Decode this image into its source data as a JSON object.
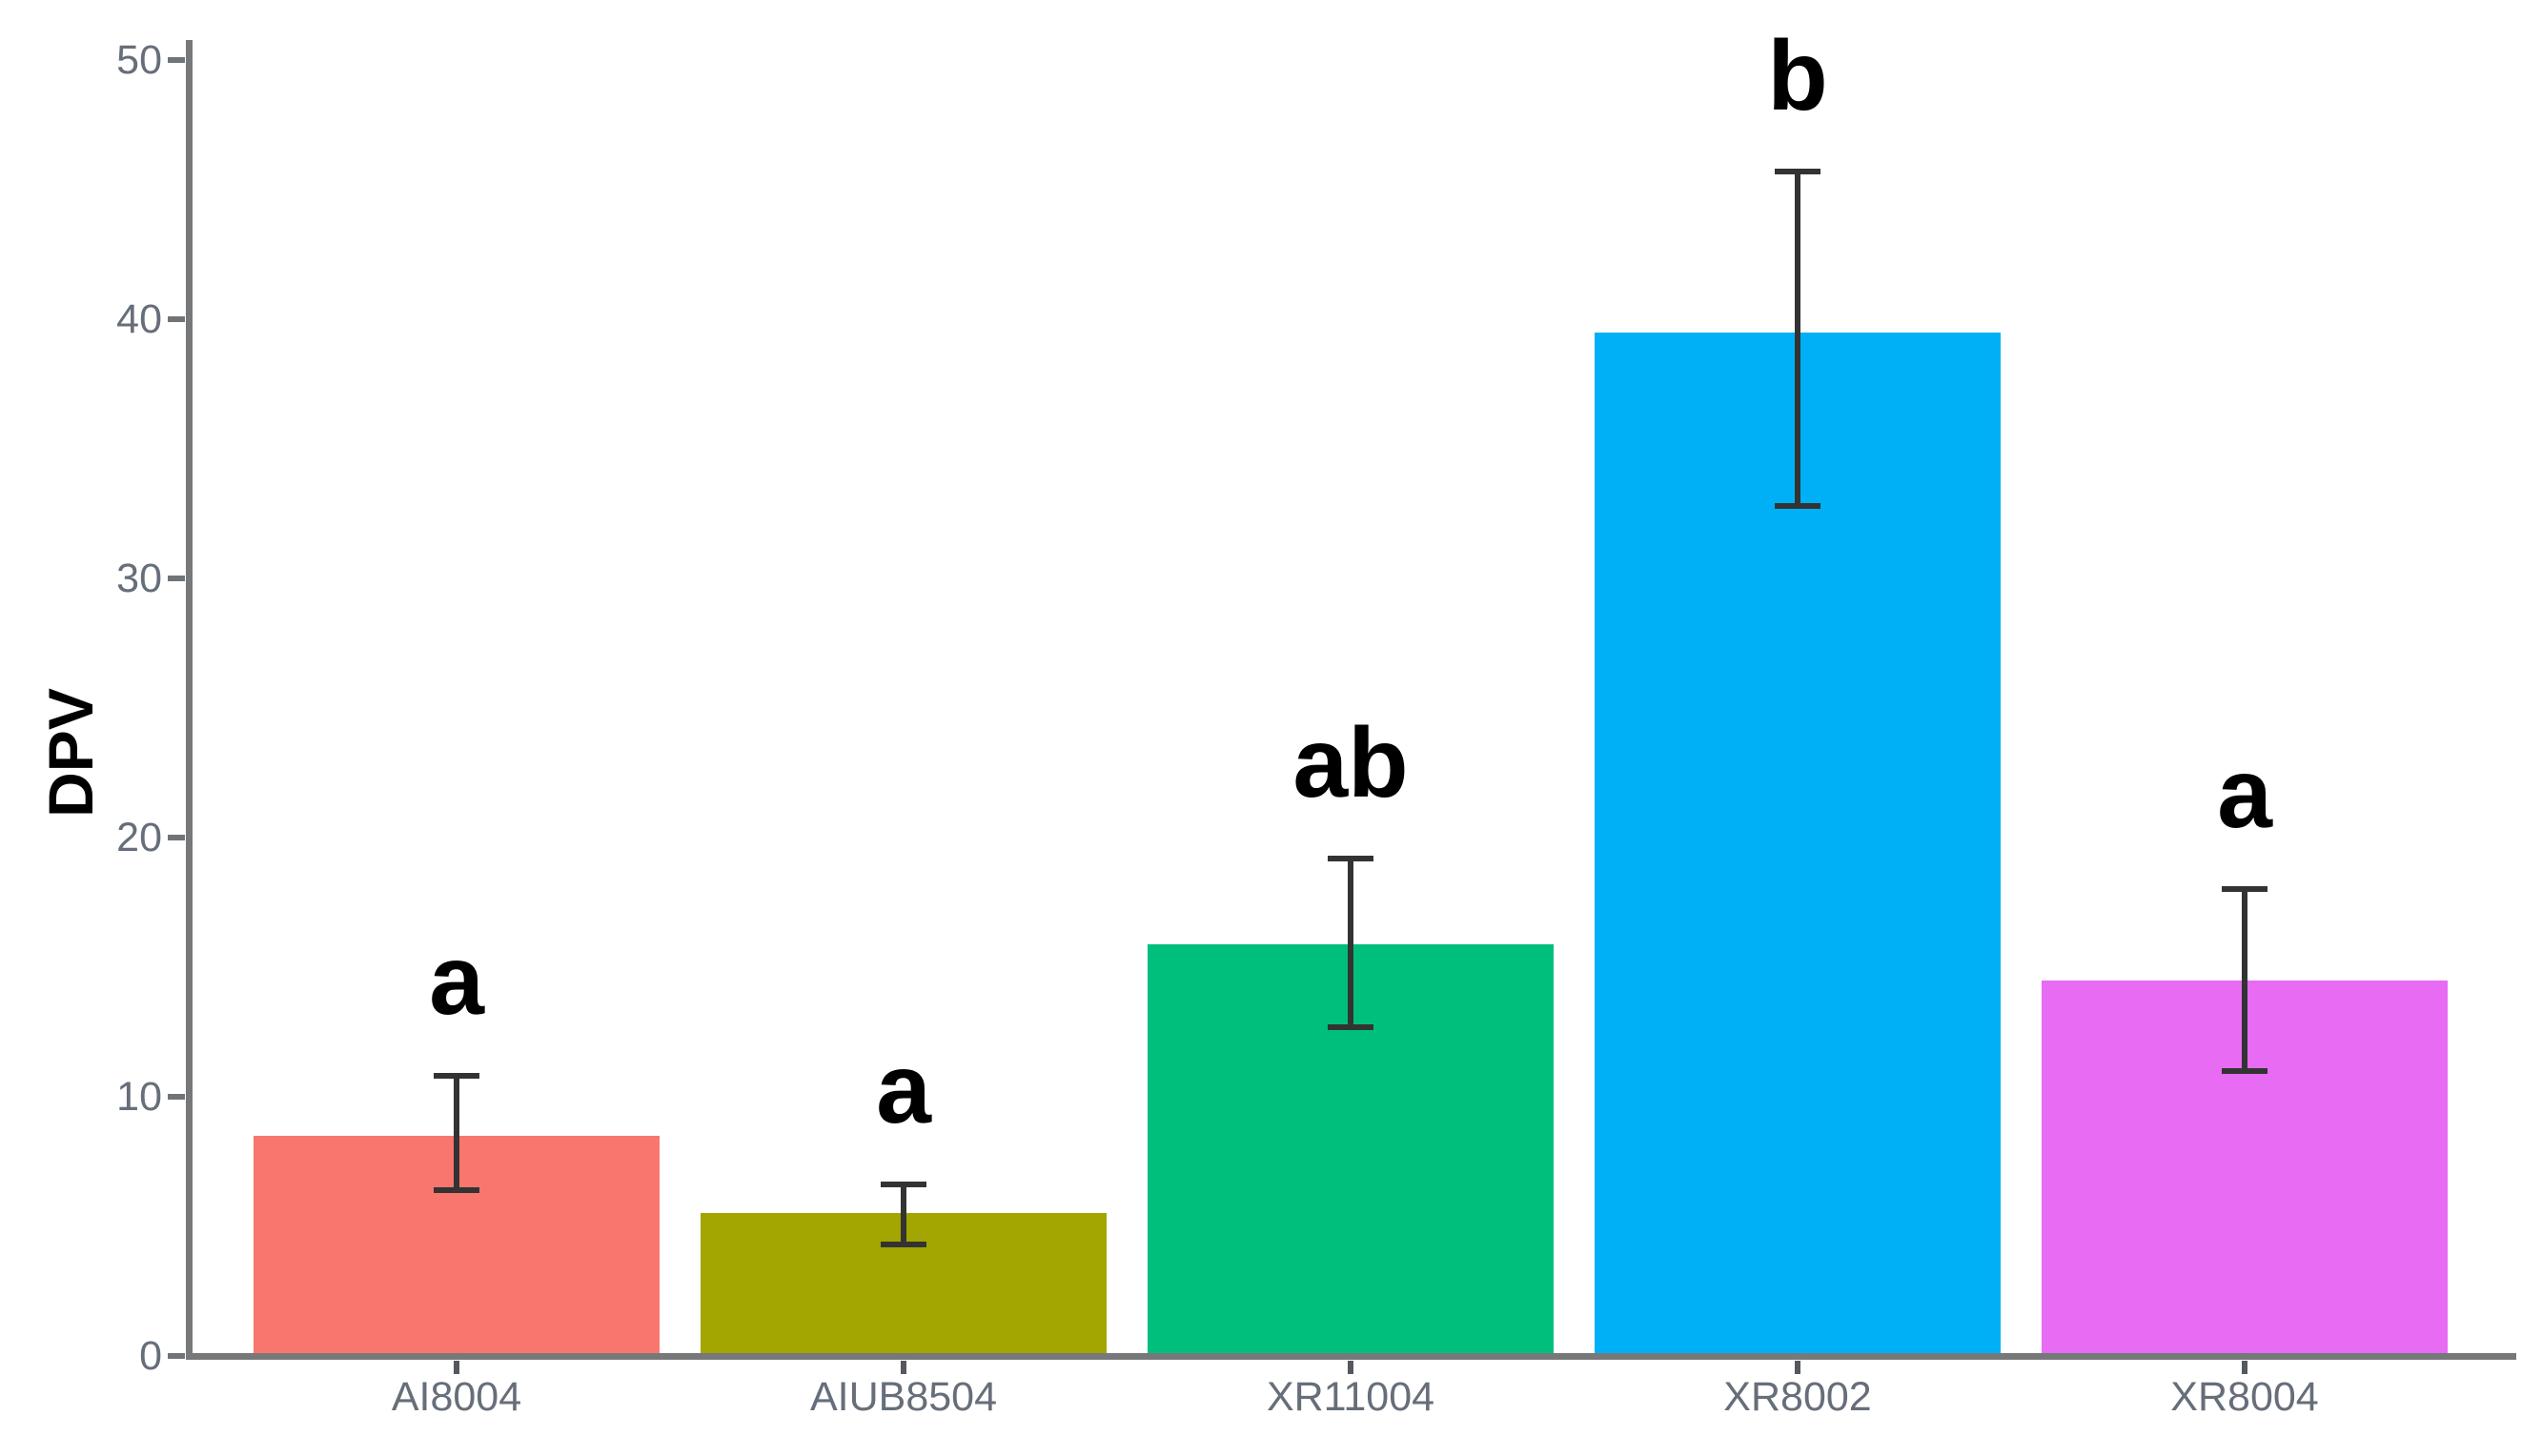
{
  "chart_data": {
    "type": "bar",
    "title": "",
    "xlabel": "",
    "ylabel": "DPV",
    "categories": [
      "AI8004",
      "AIUB8504",
      "XR11004",
      "XR8002",
      "XR8004"
    ],
    "values": [
      8.5,
      5.5,
      15.9,
      39.5,
      14.5
    ],
    "error_upper": [
      10.8,
      6.6,
      19.2,
      45.7,
      18.0
    ],
    "error_lower": [
      6.4,
      4.3,
      12.7,
      32.8,
      11.0
    ],
    "significance_letters": [
      "a",
      "a",
      "ab",
      "b",
      "a"
    ],
    "bar_colors": [
      "#F8766D",
      "#A3A500",
      "#00BF7D",
      "#00B0F6",
      "#E76BF3"
    ],
    "y_ticks": [
      0,
      10,
      20,
      30,
      40,
      50
    ],
    "ylim": [
      0,
      50
    ],
    "grid": false,
    "legend": false
  },
  "styles": {
    "axis_color": "#77787a",
    "tick_label_color": "#666e79",
    "error_bar_color": "#333333",
    "letter_color": "#000000",
    "background": "#ffffff"
  }
}
